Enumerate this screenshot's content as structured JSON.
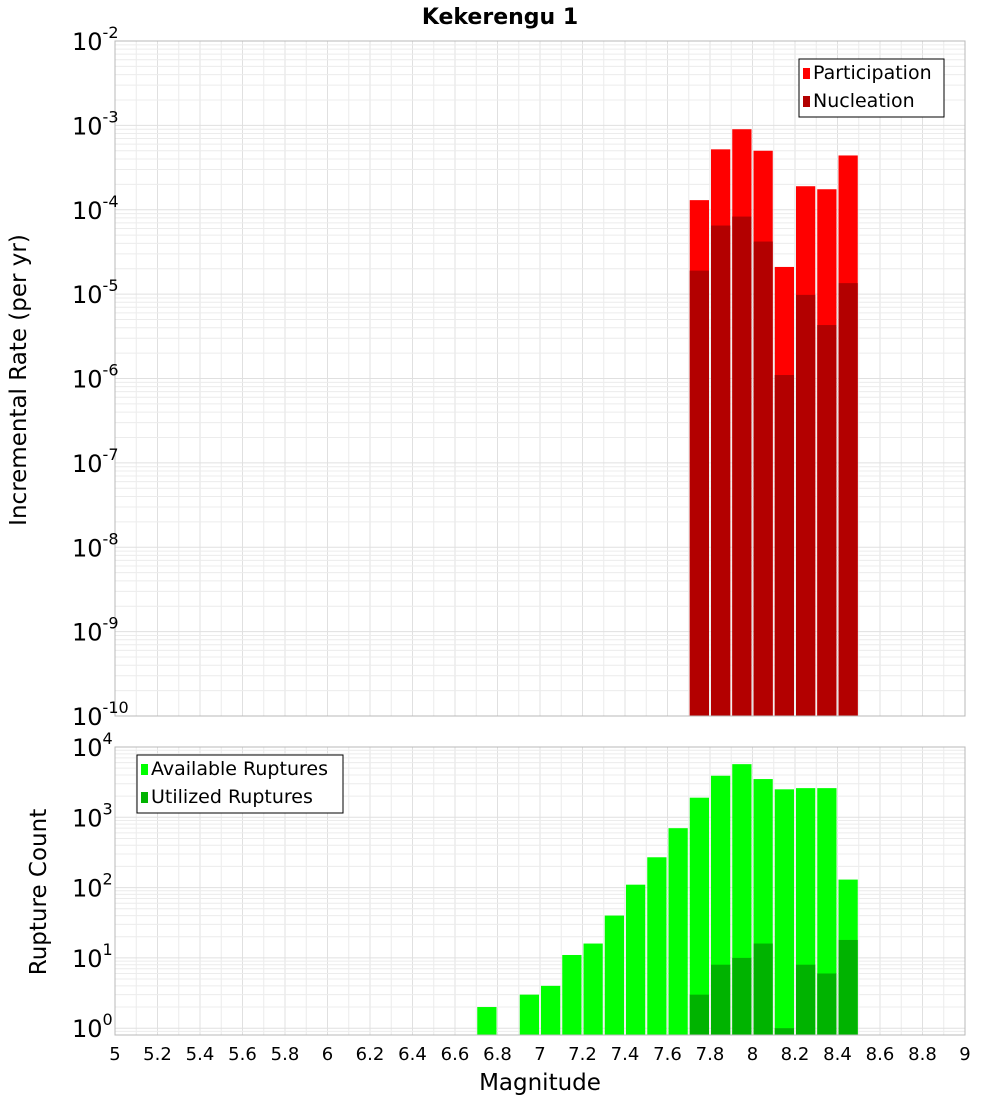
{
  "chart_data": [
    {
      "type": "bar",
      "panel": "top",
      "title": "Kekerengu 1",
      "xlabel": "",
      "ylabel": "Incremental Rate (per yr)",
      "yscale": "log",
      "ylim": [
        1e-10,
        0.01
      ],
      "xlim": [
        5,
        9
      ],
      "y_tick_exponents": [
        "-10",
        "-9",
        "-8",
        "-7",
        "-6",
        "-5",
        "-4",
        "-3",
        "-2"
      ],
      "legend_position": "top-right",
      "bin_width": 0.1,
      "x": [
        7.75,
        7.85,
        7.95,
        8.05,
        8.15,
        8.25,
        8.35,
        8.45
      ],
      "series": [
        {
          "name": "Participation",
          "color": "#ff0000",
          "values": [
            0.00013,
            0.00052,
            0.0009,
            0.0005,
            2.1e-05,
            0.00019,
            0.000175,
            0.00044
          ]
        },
        {
          "name": "Nucleation",
          "color": "#b30000",
          "values": [
            1.9e-05,
            6.5e-05,
            8.3e-05,
            4.2e-05,
            1.1e-06,
            9.8e-06,
            4.3e-06,
            1.35e-05
          ]
        }
      ]
    },
    {
      "type": "bar",
      "panel": "bottom",
      "title": "",
      "xlabel": "Magnitude",
      "ylabel": "Rupture Count",
      "yscale": "log",
      "ylim": [
        0.8,
        10000
      ],
      "xlim": [
        5,
        9
      ],
      "y_tick_exponents": [
        "0",
        "1",
        "2",
        "3",
        "4"
      ],
      "x_tick_labels": [
        "5",
        "5.2",
        "5.4",
        "5.6",
        "5.8",
        "6",
        "6.2",
        "6.4",
        "6.6",
        "6.8",
        "7",
        "7.2",
        "7.4",
        "7.6",
        "7.8",
        "8",
        "8.2",
        "8.4",
        "8.6",
        "8.8",
        "9"
      ],
      "legend_position": "top-left",
      "bin_width": 0.1,
      "series": [
        {
          "name": "Available Ruptures",
          "color": "#00ff00",
          "x": [
            6.75,
            6.95,
            7.05,
            7.15,
            7.25,
            7.35,
            7.45,
            7.55,
            7.65,
            7.75,
            7.85,
            7.95,
            8.05,
            8.15,
            8.25,
            8.35,
            8.45
          ],
          "values": [
            2,
            3,
            4,
            11,
            16,
            40,
            110,
            270,
            700,
            1900,
            3900,
            5700,
            3500,
            2500,
            2600,
            2600,
            130
          ]
        },
        {
          "name": "Utilized Ruptures",
          "color": "#00b300",
          "x": [
            7.75,
            7.85,
            7.95,
            8.05,
            8.15,
            8.25,
            8.35,
            8.45
          ],
          "values": [
            3,
            8,
            10,
            16,
            1,
            8,
            6,
            18
          ]
        }
      ]
    }
  ]
}
